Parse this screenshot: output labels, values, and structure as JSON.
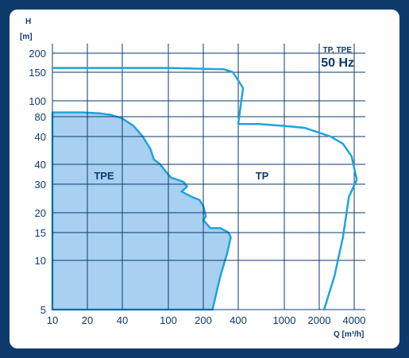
{
  "colors": {
    "background": "#0d3a6b",
    "card": "#ffffff",
    "grid": "#0d3a6b",
    "tpe_fill": "#9ecbef",
    "curve": "#1fa3dd",
    "text": "#0d3a6b"
  },
  "chart_data": {
    "type": "area",
    "title": "TP, TPE",
    "subtitle": "50 Hz",
    "ylabel_line1": "H",
    "ylabel_line2": "[m]",
    "xlabel": "Q [m³/h]",
    "x_tick_labels": [
      "10",
      "20",
      "40",
      "100",
      "200",
      "400",
      "1000",
      "2000",
      "4000"
    ],
    "y_tick_labels": [
      "200",
      "150",
      "100",
      "80",
      "40",
      "40",
      "30",
      "20",
      "15",
      "10",
      "5"
    ],
    "grid": true,
    "series": [
      {
        "name": "TPE",
        "kind": "filled-area",
        "x": [
          10,
          13,
          18,
          25,
          32,
          40,
          50,
          60,
          70,
          75,
          85,
          95,
          105,
          120,
          135,
          145,
          130,
          160,
          185,
          200,
          210,
          200,
          230,
          280,
          330,
          345,
          320,
          280,
          240
        ],
        "y": [
          85,
          85,
          85,
          84,
          82,
          78,
          70,
          60,
          50,
          43,
          40,
          36,
          33,
          32,
          31,
          29,
          27,
          25,
          24,
          22,
          19,
          18,
          16,
          16,
          15,
          14,
          11,
          8,
          5
        ]
      },
      {
        "name": "TP",
        "kind": "outline",
        "x": [
          10,
          30,
          100,
          200,
          300,
          360,
          440,
          400,
          600,
          1000,
          1500,
          2500,
          3200,
          3800,
          4200,
          3600,
          3400,
          3200,
          2700,
          2200
        ],
        "y": [
          160,
          160,
          160,
          158,
          157,
          150,
          120,
          72,
          72,
          70,
          68,
          60,
          54,
          45,
          32,
          25,
          19,
          14,
          8,
          5
        ]
      }
    ],
    "region_labels": [
      "TPE",
      "TP"
    ]
  }
}
